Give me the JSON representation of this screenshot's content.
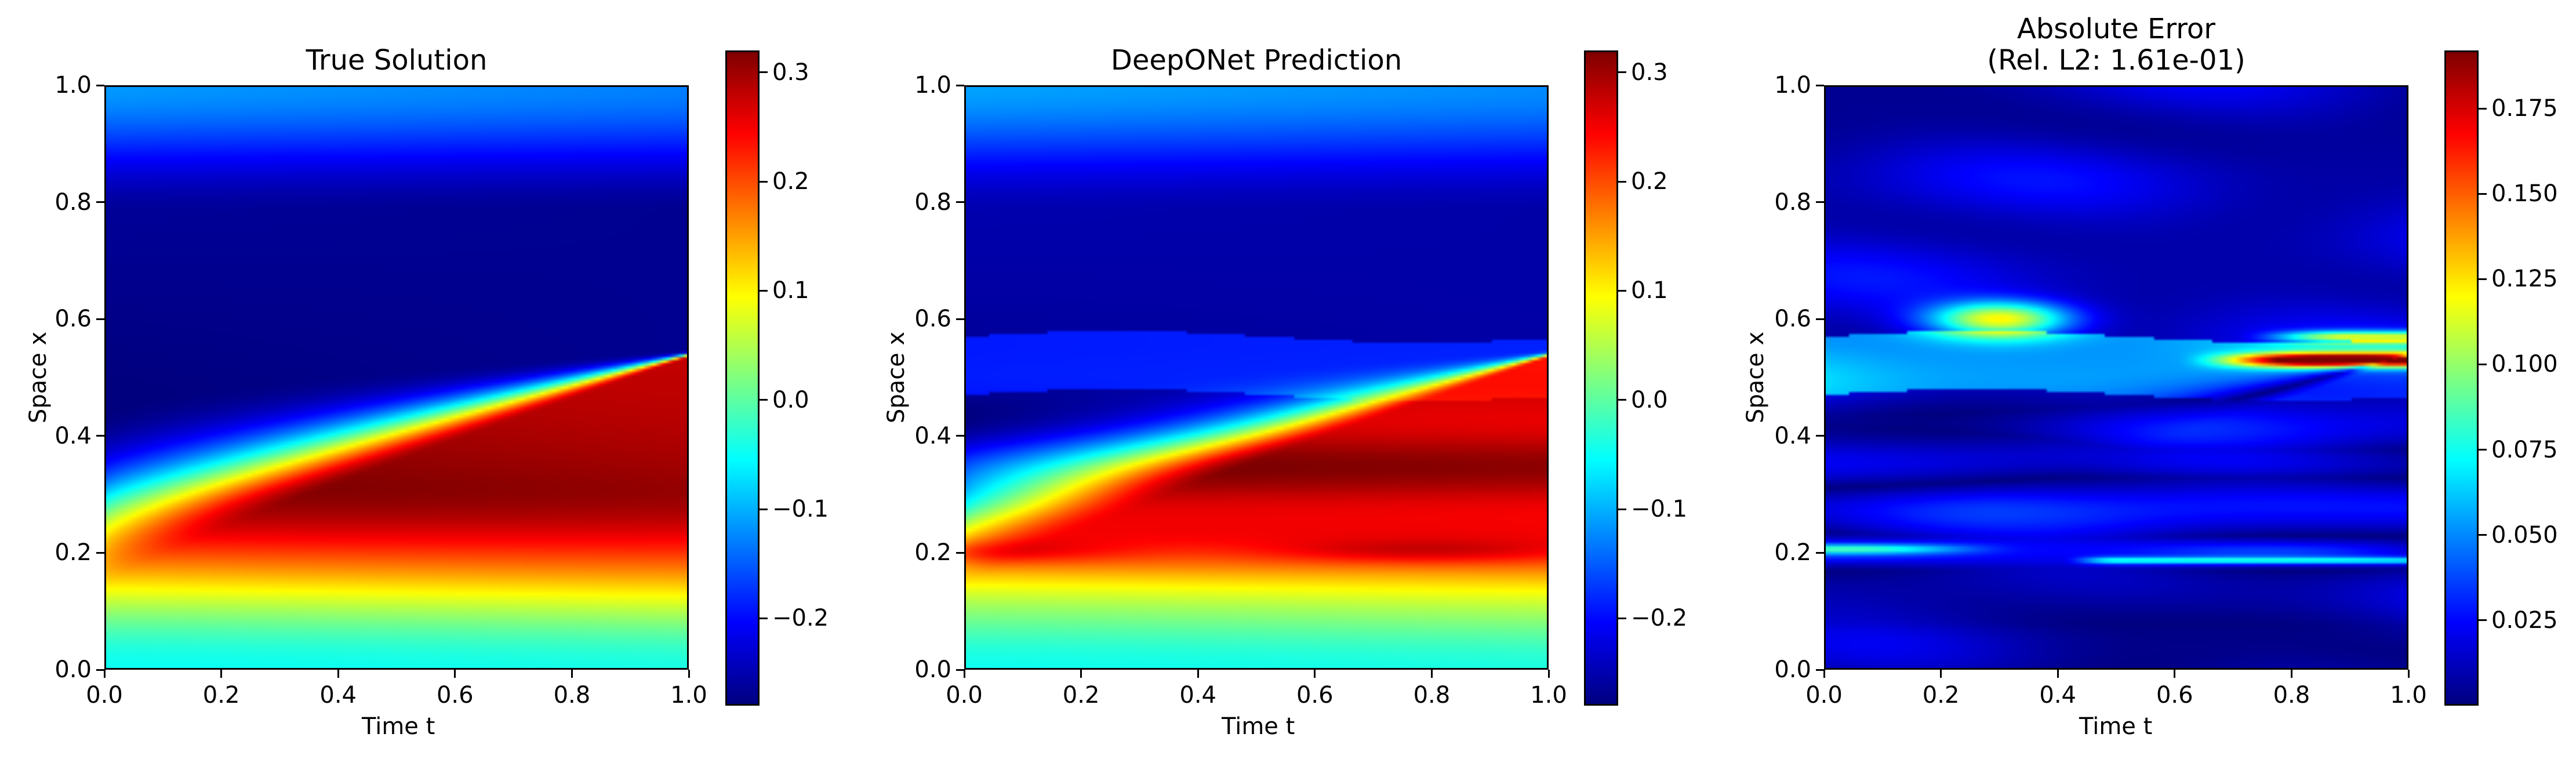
{
  "colorscale": [
    "#00007f",
    "#0000ff",
    "#007fff",
    "#00ffff",
    "#7fff7f",
    "#ffff00",
    "#ff7f00",
    "#ff0000",
    "#7f0000"
  ],
  "chart_data": [
    {
      "type": "heatmap",
      "title": "True Solution",
      "xlabel": "Time t",
      "ylabel": "Space x",
      "xlim": [
        0.0,
        1.0
      ],
      "ylim": [
        0.0,
        1.0
      ],
      "xticks": [
        "0.0",
        "0.2",
        "0.4",
        "0.6",
        "0.8",
        "1.0"
      ],
      "yticks": [
        "0.0",
        "0.2",
        "0.4",
        "0.6",
        "0.8",
        "1.0"
      ],
      "colorbar": {
        "min": -0.28,
        "max": 0.32,
        "ticks": [
          "0.3",
          "0.2",
          "0.1",
          "0.0",
          "−0.1",
          "−0.2"
        ],
        "tick_values": [
          0.3,
          0.2,
          0.1,
          0.0,
          -0.1,
          -0.2
        ]
      },
      "field": "true"
    },
    {
      "type": "heatmap",
      "title": "DeepONet Prediction",
      "xlabel": "Time t",
      "ylabel": "Space x",
      "xlim": [
        0.0,
        1.0
      ],
      "ylim": [
        0.0,
        1.0
      ],
      "xticks": [
        "0.0",
        "0.2",
        "0.4",
        "0.6",
        "0.8",
        "1.0"
      ],
      "yticks": [
        "0.0",
        "0.2",
        "0.4",
        "0.6",
        "0.8",
        "1.0"
      ],
      "colorbar": {
        "min": -0.28,
        "max": 0.32,
        "ticks": [
          "0.3",
          "0.2",
          "0.1",
          "0.0",
          "−0.1",
          "−0.2"
        ],
        "tick_values": [
          0.3,
          0.2,
          0.1,
          0.0,
          -0.1,
          -0.2
        ]
      },
      "field": "pred"
    },
    {
      "type": "heatmap",
      "title": "Absolute Error",
      "subtitle": "(Rel. L2: 1.61e-01)",
      "xlabel": "Time t",
      "ylabel": "Space x",
      "xlim": [
        0.0,
        1.0
      ],
      "ylim": [
        0.0,
        1.0
      ],
      "xticks": [
        "0.0",
        "0.2",
        "0.4",
        "0.6",
        "0.8",
        "1.0"
      ],
      "yticks": [
        "0.0",
        "0.2",
        "0.4",
        "0.6",
        "0.8",
        "1.0"
      ],
      "colorbar": {
        "min": 0.0,
        "max": 0.192,
        "ticks": [
          "0.175",
          "0.150",
          "0.125",
          "0.100",
          "0.075",
          "0.050",
          "0.025"
        ],
        "tick_values": [
          0.175,
          0.15,
          0.125,
          0.1,
          0.075,
          0.05,
          0.025
        ]
      },
      "field": "error"
    }
  ]
}
